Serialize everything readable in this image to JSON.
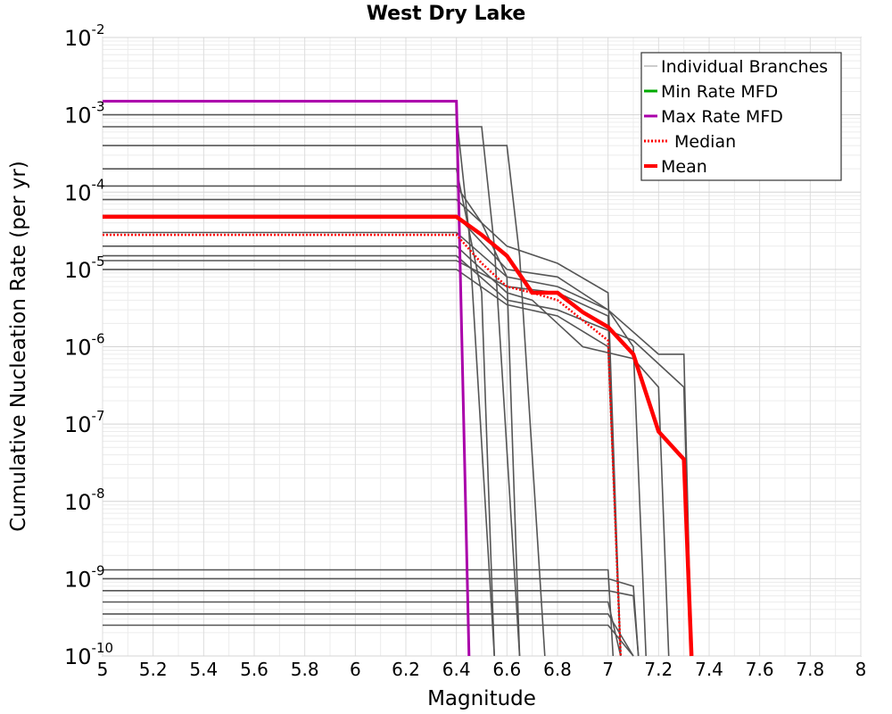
{
  "chart_data": {
    "type": "line",
    "title": "West Dry Lake",
    "xlabel": "Magnitude",
    "ylabel": "Cumulative Nucleation Rate (per yr)",
    "xlim": [
      5,
      8
    ],
    "ylim": [
      1e-10,
      0.01
    ],
    "yscale": "log",
    "grid": true,
    "legend_position": "top-right",
    "x_ticks": [
      5,
      5.2,
      5.4,
      5.6,
      5.8,
      6,
      6.2,
      6.4,
      6.6,
      6.8,
      7,
      7.2,
      7.4,
      7.6,
      7.8,
      8
    ],
    "x_tick_labels": [
      "5",
      "5.2",
      "5.4",
      "5.6",
      "5.8",
      "6",
      "6.2",
      "6.4",
      "6.6",
      "6.8",
      "7",
      "7.2",
      "7.4",
      "7.6",
      "7.8",
      "8"
    ],
    "y_ticks": [
      {
        "value": 0.01,
        "base": "10",
        "exp": "-2"
      },
      {
        "value": 0.001,
        "base": "10",
        "exp": "-3"
      },
      {
        "value": 0.0001,
        "base": "10",
        "exp": "-4"
      },
      {
        "value": 1e-05,
        "base": "10",
        "exp": "-5"
      },
      {
        "value": 1e-06,
        "base": "10",
        "exp": "-6"
      },
      {
        "value": 1e-07,
        "base": "10",
        "exp": "-7"
      },
      {
        "value": 1e-08,
        "base": "10",
        "exp": "-8"
      },
      {
        "value": 1e-09,
        "base": "10",
        "exp": "-9"
      },
      {
        "value": 1e-10,
        "base": "10",
        "exp": "-10"
      }
    ],
    "legend": [
      {
        "label": "Individual Branches",
        "color": "#999999",
        "style": "thin"
      },
      {
        "label": "Min Rate MFD",
        "color": "#00aa00",
        "style": "solid"
      },
      {
        "label": "Max Rate MFD",
        "color": "#aa00aa",
        "style": "solid"
      },
      {
        "label": " Median",
        "color": "#ff0000",
        "style": "dotted"
      },
      {
        "label": "Mean",
        "color": "#ff0000",
        "style": "thick"
      }
    ],
    "branches": [
      {
        "name": "Individual Branches",
        "color": "#555555",
        "x": [
          5,
          6.4,
          6.45,
          6.55
        ],
        "y": [
          0.001,
          0.001,
          3e-05,
          1e-10
        ]
      },
      {
        "name": "Individual Branches",
        "color": "#555555",
        "x": [
          5,
          6.5,
          6.55,
          6.65
        ],
        "y": [
          0.0007,
          0.0007,
          2e-05,
          1e-10
        ]
      },
      {
        "name": "Individual Branches",
        "color": "#555555",
        "x": [
          5,
          6.6,
          6.65,
          6.75
        ],
        "y": [
          0.0004,
          0.0004,
          1.5e-05,
          1e-10
        ]
      },
      {
        "name": "Individual Branches",
        "color": "#555555",
        "x": [
          5,
          6.4,
          6.5,
          6.55
        ],
        "y": [
          0.0002,
          0.0002,
          5e-06,
          1e-10
        ]
      },
      {
        "name": "Individual Branches",
        "color": "#555555",
        "x": [
          5,
          6.4,
          6.5,
          6.6,
          6.65
        ],
        "y": [
          0.00012,
          0.00012,
          4e-05,
          8e-06,
          1e-10
        ]
      },
      {
        "name": "Individual Branches",
        "color": "#555555",
        "x": [
          5,
          6.4,
          6.6,
          6.8,
          7,
          7.05
        ],
        "y": [
          8e-05,
          8e-05,
          2e-05,
          1.2e-05,
          5e-06,
          1e-10
        ]
      },
      {
        "name": "Individual Branches",
        "color": "#555555",
        "x": [
          5,
          6.4,
          6.6,
          6.8,
          7,
          7.1,
          7.15
        ],
        "y": [
          5e-05,
          5e-05,
          1e-05,
          8e-06,
          3e-06,
          1e-06,
          1e-10
        ]
      },
      {
        "name": "Individual Branches",
        "color": "#555555",
        "x": [
          5,
          6.4,
          6.6,
          6.8,
          7,
          7.2,
          7.3,
          7.33
        ],
        "y": [
          3e-05,
          3e-05,
          8e-06,
          6e-06,
          3e-06,
          8e-07,
          8e-07,
          1e-10
        ]
      },
      {
        "name": "Individual Branches",
        "color": "#555555",
        "x": [
          5,
          6.4,
          6.6,
          6.7,
          6.9,
          7.1,
          7.2,
          7.24
        ],
        "y": [
          2e-05,
          2e-05,
          5e-06,
          4e-06,
          1e-06,
          7e-07,
          3e-07,
          1e-10
        ]
      },
      {
        "name": "Individual Branches",
        "color": "#555555",
        "x": [
          5,
          6.4,
          6.6,
          6.8,
          7.1,
          7.3,
          7.33
        ],
        "y": [
          1.5e-05,
          1.5e-05,
          4e-06,
          3e-06,
          1.2e-06,
          3e-07,
          1e-10
        ]
      },
      {
        "name": "Individual Branches",
        "color": "#555555",
        "x": [
          5,
          6.4,
          6.6,
          6.8,
          7,
          7.05
        ],
        "y": [
          1e-05,
          1e-05,
          3.5e-06,
          2.5e-06,
          1e-06,
          1e-10
        ]
      },
      {
        "name": "Individual Branches",
        "color": "#555555",
        "x": [
          5,
          6.4,
          6.6,
          6.8,
          7.0,
          7.05
        ],
        "y": [
          1.3e-05,
          1.3e-05,
          6e-06,
          5e-06,
          2.5e-06,
          1e-10
        ]
      },
      {
        "name": "Individual Branches",
        "color": "#555555",
        "x": [
          5,
          7.0,
          7.02
        ],
        "y": [
          1.3e-09,
          1.3e-09,
          1e-10
        ]
      },
      {
        "name": "Individual Branches",
        "color": "#555555",
        "x": [
          5,
          7.0,
          7.1,
          7.12
        ],
        "y": [
          1e-09,
          1e-09,
          8e-10,
          1e-10
        ]
      },
      {
        "name": "Individual Branches",
        "color": "#555555",
        "x": [
          5,
          7.0,
          7.1,
          7.12
        ],
        "y": [
          7e-10,
          7e-10,
          6e-10,
          1e-10
        ]
      },
      {
        "name": "Individual Branches",
        "color": "#555555",
        "x": [
          5,
          7.0,
          7.05
        ],
        "y": [
          5e-10,
          5e-10,
          1e-10
        ]
      },
      {
        "name": "Individual Branches",
        "color": "#555555",
        "x": [
          5,
          7.0,
          7.1
        ],
        "y": [
          3.5e-10,
          3.5e-10,
          1e-10
        ]
      },
      {
        "name": "Individual Branches",
        "color": "#555555",
        "x": [
          5,
          7.0,
          7.1
        ],
        "y": [
          2.5e-10,
          2.5e-10,
          1e-10
        ]
      }
    ],
    "series": [
      {
        "name": "Max Rate MFD",
        "color": "#aa00aa",
        "x": [
          5,
          6.4,
          6.45
        ],
        "y": [
          0.0015,
          0.0015,
          1e-10
        ]
      },
      {
        "name": "Median",
        "color": "#ff0000",
        "style": "dotted",
        "x": [
          5,
          6.4,
          6.5,
          6.6,
          6.7,
          6.8,
          6.9,
          7.0,
          7.05
        ],
        "y": [
          2.8e-05,
          2.8e-05,
          1.2e-05,
          6e-06,
          5e-06,
          4e-06,
          2.2e-06,
          1.2e-06,
          1e-10
        ]
      },
      {
        "name": "Mean",
        "color": "#ff0000",
        "style": "thick",
        "x": [
          5,
          6.4,
          6.5,
          6.6,
          6.7,
          6.8,
          6.9,
          7.0,
          7.1,
          7.2,
          7.3,
          7.33
        ],
        "y": [
          4.8e-05,
          4.8e-05,
          2.8e-05,
          1.5e-05,
          5e-06,
          5e-06,
          2.8e-06,
          1.8e-06,
          8e-07,
          8e-08,
          3.5e-08,
          1e-10
        ]
      }
    ]
  }
}
